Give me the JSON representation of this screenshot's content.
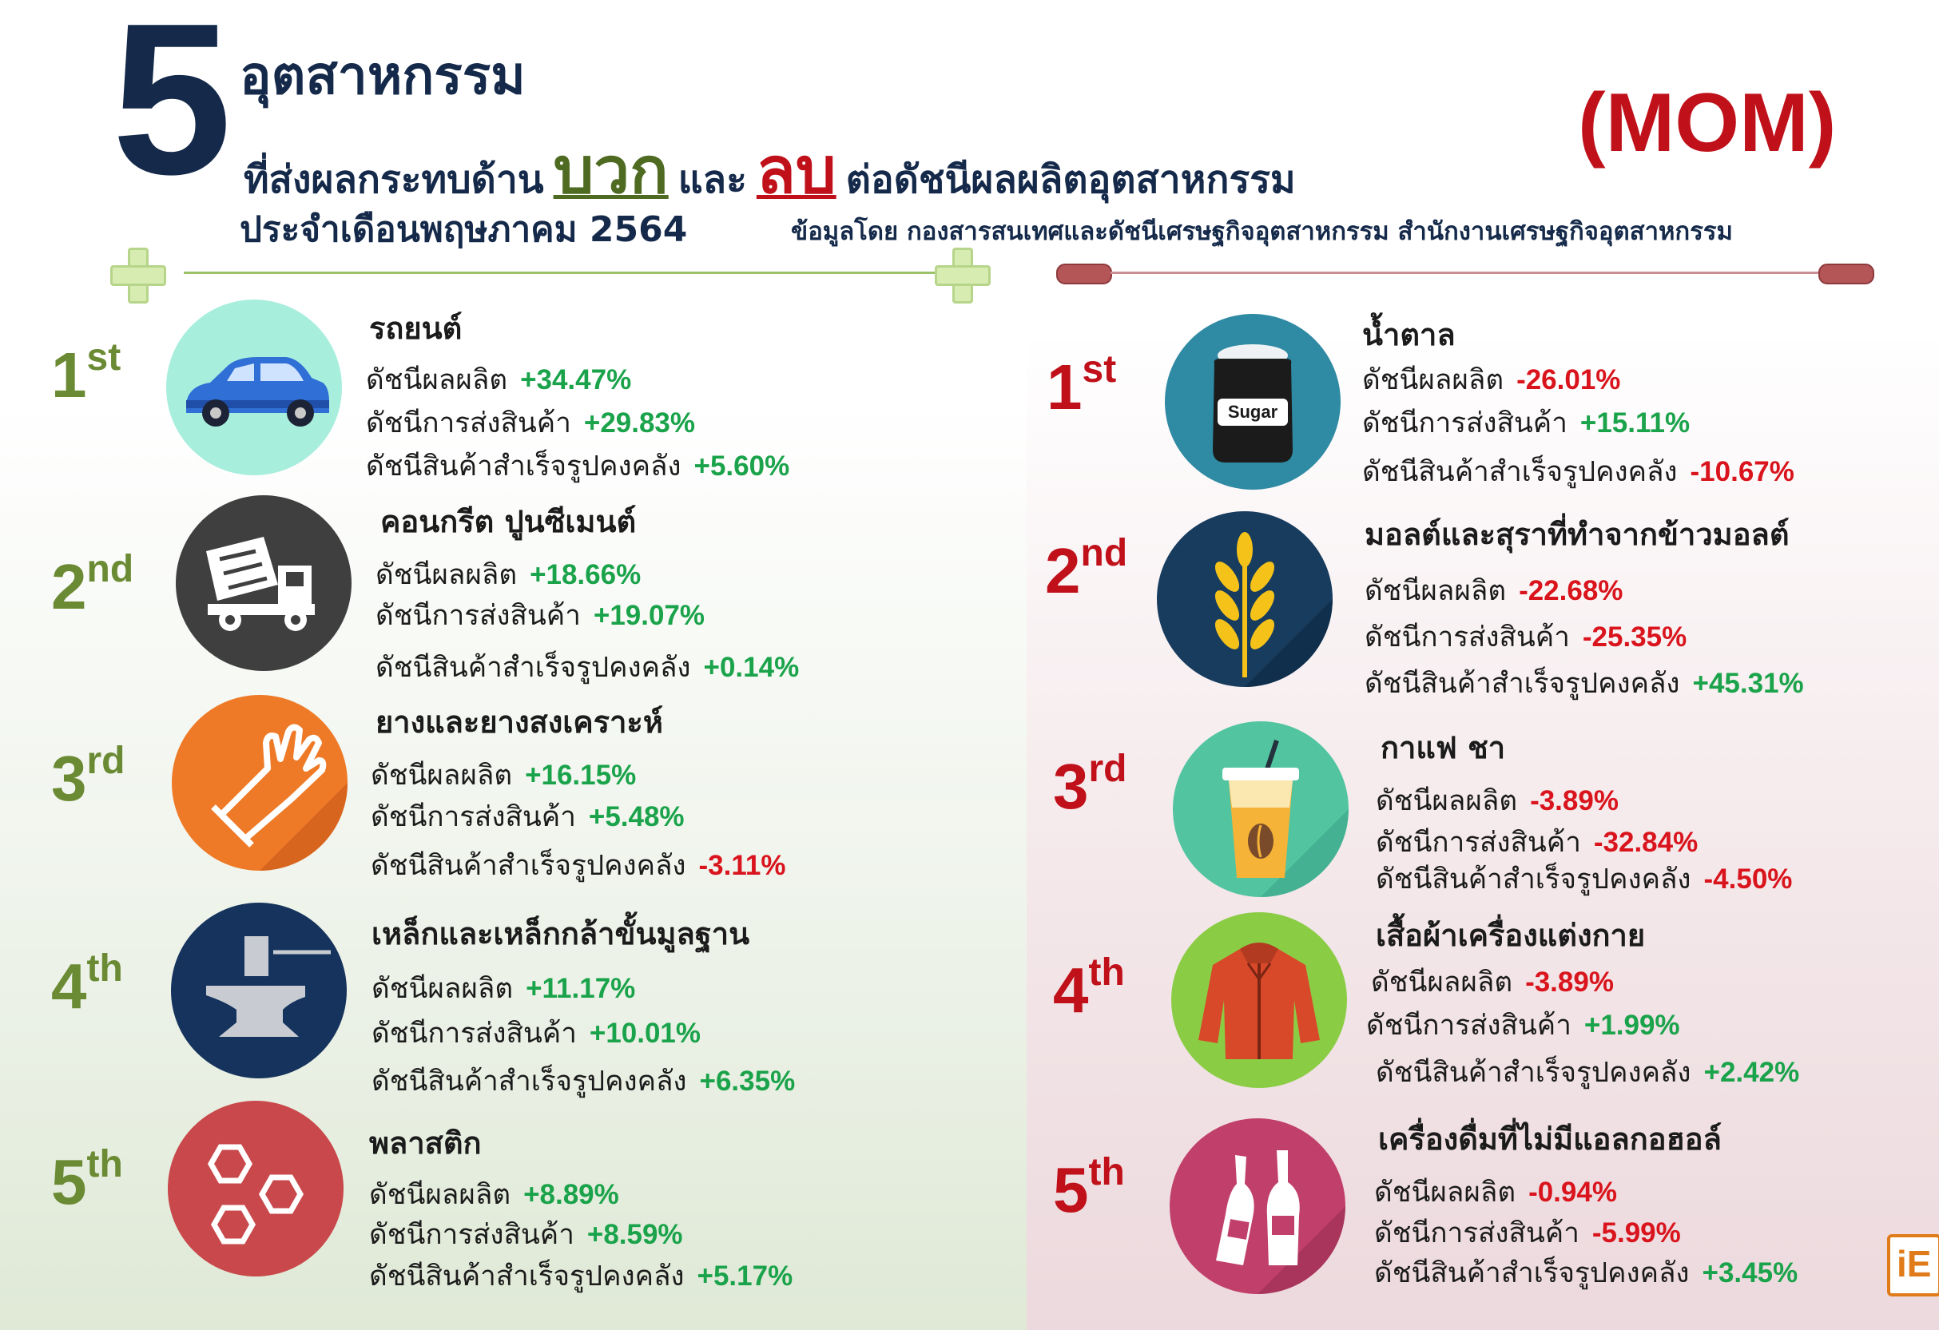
{
  "header": {
    "big_number": "5",
    "title_line1": "อุตสาหกรรม",
    "title_line2_pre": "ที่ส่งผลกระทบด้าน",
    "positive_word": "บวก",
    "and_word": "และ",
    "negative_word": "ลบ",
    "title_line2_post": "ต่อดัชนีผลผลิตอุตสาหกรรม",
    "period": "ประจำเดือนพฤษภาคม 2564",
    "source": "ข้อมูลโดย กองสารสนเทศและดัชนีเศรษฐกิจอุตสาหกรรม สำนักงานเศรษฐกิจอุตสาหกรรม",
    "badge": "(MOM)"
  },
  "colors": {
    "positive": "#1aa34a",
    "negative": "#d9141c",
    "navy": "#152a4a",
    "olive": "#6b8a34"
  },
  "positive": [
    {
      "rank_num": "1",
      "rank_suffix": "st",
      "name": "รถยนต์",
      "icon": "car-icon",
      "production": "+34.47%",
      "shipment": "+29.83%",
      "inventory": "+5.60%"
    },
    {
      "rank_num": "2",
      "rank_suffix": "nd",
      "name": "คอนกรีต ปูนซีเมนต์",
      "icon": "cement-truck-icon",
      "production": "+18.66%",
      "shipment": "+19.07%",
      "inventory": "+0.14%"
    },
    {
      "rank_num": "3",
      "rank_suffix": "rd",
      "name": "ยางและยางสงเคราะห์",
      "icon": "rubber-glove-icon",
      "production": "+16.15%",
      "shipment": "+5.48%",
      "inventory": "-3.11%"
    },
    {
      "rank_num": "4",
      "rank_suffix": "th",
      "name": "เหล็กและเหล็กกล้าขั้นมูลฐาน",
      "icon": "anvil-icon",
      "production": "+11.17%",
      "shipment": "+10.01%",
      "inventory": "+6.35%"
    },
    {
      "rank_num": "5",
      "rank_suffix": "th",
      "name": "พลาสติก",
      "icon": "hexagon-molecule-icon",
      "production": "+8.89%",
      "shipment": "+8.59%",
      "inventory": "+5.17%"
    }
  ],
  "negative": [
    {
      "rank_num": "1",
      "rank_suffix": "st",
      "name": "น้ำตาล",
      "icon": "sugar-jar-icon",
      "icon_label": "Sugar",
      "production": "-26.01%",
      "shipment": "+15.11%",
      "inventory": "-10.67%"
    },
    {
      "rank_num": "2",
      "rank_suffix": "nd",
      "name": "มอลต์และสุราที่ทำจากข้าวมอลต์",
      "icon": "wheat-icon",
      "production": "-22.68%",
      "shipment": "-25.35%",
      "inventory": "+45.31%"
    },
    {
      "rank_num": "3",
      "rank_suffix": "rd",
      "name": "กาแฟ ชา",
      "icon": "coffee-cup-icon",
      "production": "-3.89%",
      "shipment": "-32.84%",
      "inventory": "-4.50%"
    },
    {
      "rank_num": "4",
      "rank_suffix": "th",
      "name": "เสื้อผ้าเครื่องแต่งกาย",
      "icon": "jacket-icon",
      "production": "-3.89%",
      "shipment": "+1.99%",
      "inventory": "+2.42%"
    },
    {
      "rank_num": "5",
      "rank_suffix": "th",
      "name": "เครื่องดื่มที่ไม่มีแอลกอฮอล์",
      "icon": "bottles-icon",
      "production": "-0.94%",
      "shipment": "-5.99%",
      "inventory": "+3.45%"
    }
  ],
  "labels": {
    "production": "ดัชนีผลผลิต",
    "shipment": "ดัชนีการส่งสินค้า",
    "inventory": "ดัชนีสินค้าสำเร็จรูปคงคลัง"
  },
  "footer_logo": "iE"
}
